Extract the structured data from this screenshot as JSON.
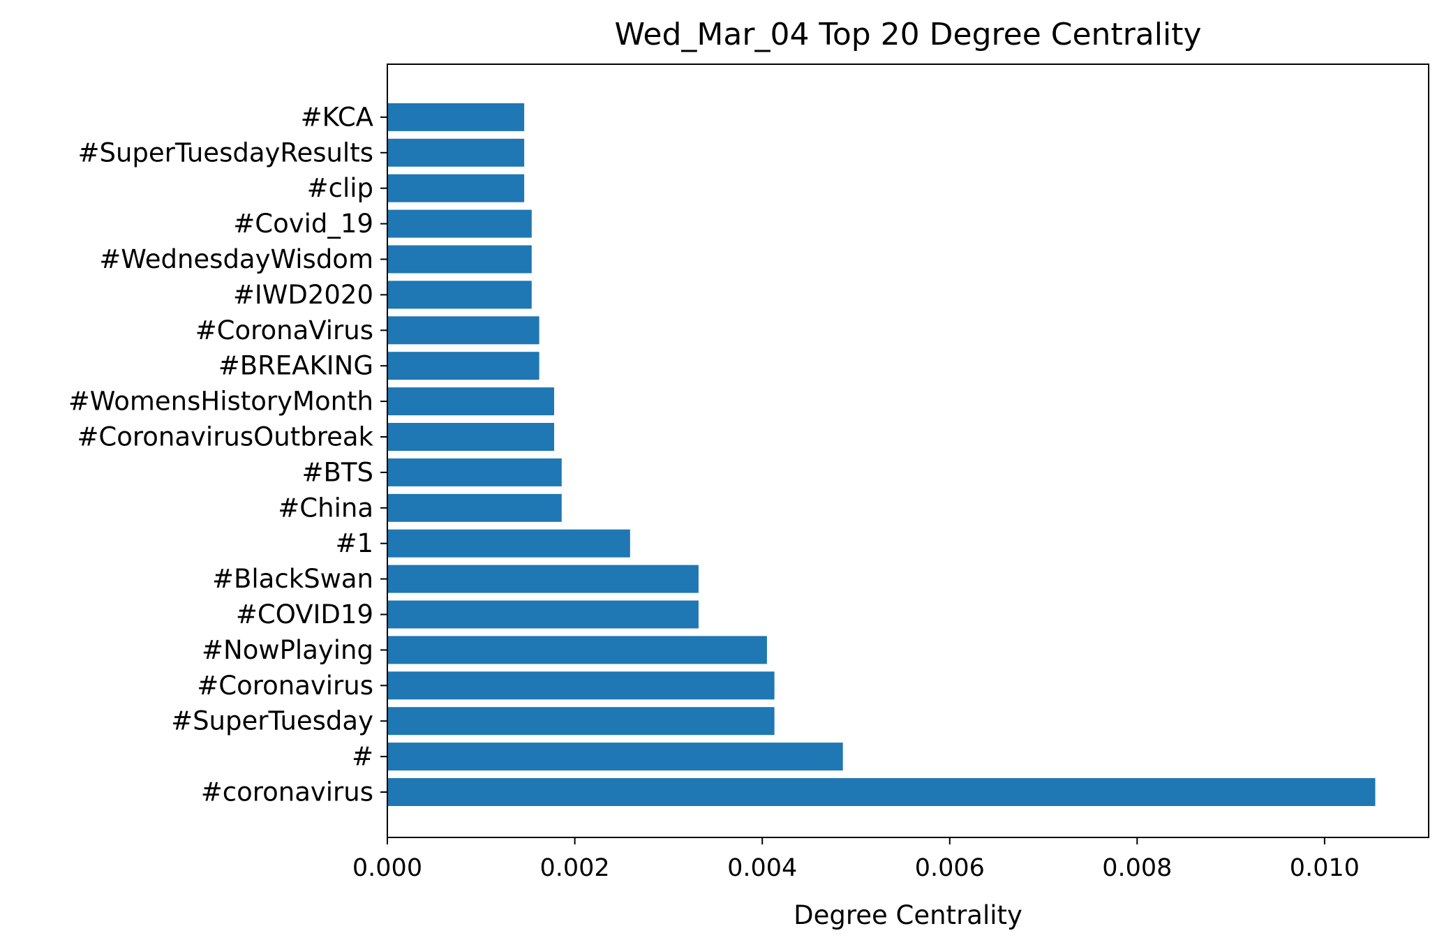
{
  "chart_data": {
    "type": "bar",
    "orientation": "horizontal",
    "title": "Wed_Mar_04 Top 20 Degree Centrality",
    "xlabel": "Degree Centrality",
    "ylabel": "",
    "xlim": [
      0,
      0.01111
    ],
    "xticks": [
      0,
      0.002,
      0.004,
      0.006,
      0.008,
      0.01
    ],
    "xtick_labels": [
      "0.000",
      "0.002",
      "0.004",
      "0.006",
      "0.008",
      "0.010"
    ],
    "grid": false,
    "bar_color": "#1f77b4",
    "categories": [
      "#coronavirus",
      "#",
      "#SuperTuesday",
      "#Coronavirus",
      "#NowPlaying",
      "#COVID19",
      "#BlackSwan",
      "#1",
      "#China",
      "#BTS",
      "#CoronavirusOutbreak",
      "#WomensHistoryMonth",
      "#BREAKING",
      "#CoronaVirus",
      "#IWD2020",
      "#WednesdayWisdom",
      "#Covid_19",
      "#clip",
      "#SuperTuesdayResults",
      "#KCA"
    ],
    "values": [
      0.01054,
      0.00486,
      0.00413,
      0.00413,
      0.00405,
      0.00332,
      0.00332,
      0.00259,
      0.00186,
      0.00186,
      0.00178,
      0.00178,
      0.00162,
      0.00162,
      0.00154,
      0.00154,
      0.00154,
      0.00146,
      0.00146,
      0.00146
    ]
  }
}
